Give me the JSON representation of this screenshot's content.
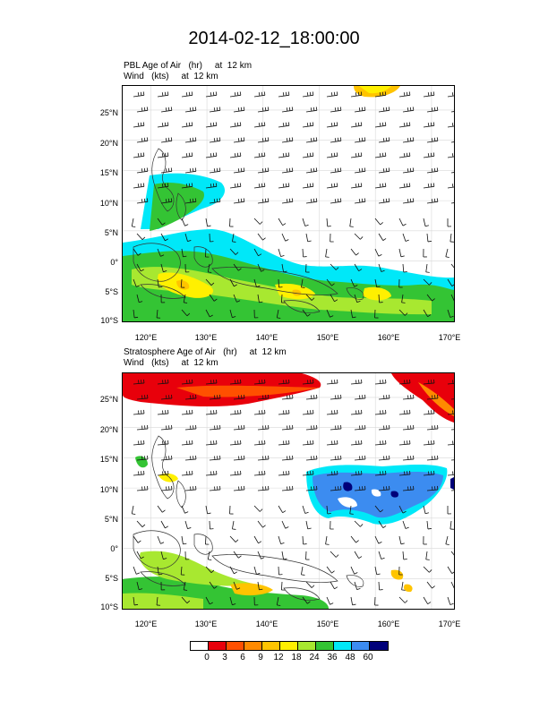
{
  "title": "2014-02-12_18:00:00",
  "panels": [
    {
      "field_label": "PBL Age of Air   (hr)     at  12 km",
      "wind_label": "Wind   (kts)     at  12 km"
    },
    {
      "field_label": "Stratosphere Age of Air   (hr)     at  12 km",
      "wind_label": "Wind   (kts)     at  12 km"
    }
  ],
  "axes": {
    "lat_labels": [
      "25°N",
      "20°N",
      "15°N",
      "10°N",
      "5°N",
      "0°",
      "5°S",
      "10°S"
    ],
    "lon_labels": [
      "120°E",
      "130°E",
      "140°E",
      "150°E",
      "160°E",
      "170°E"
    ]
  },
  "colorbar": {
    "labels": [
      "0",
      "3",
      "6",
      "9",
      "12",
      "18",
      "24",
      "36",
      "48",
      "60"
    ],
    "colors": [
      "#ffffff",
      "#e8000b",
      "#ff5000",
      "#ff8a00",
      "#ffc400",
      "#fff000",
      "#a8e830",
      "#34c434",
      "#00e8f8",
      "#3c8cf0",
      "#00007a"
    ]
  }
}
